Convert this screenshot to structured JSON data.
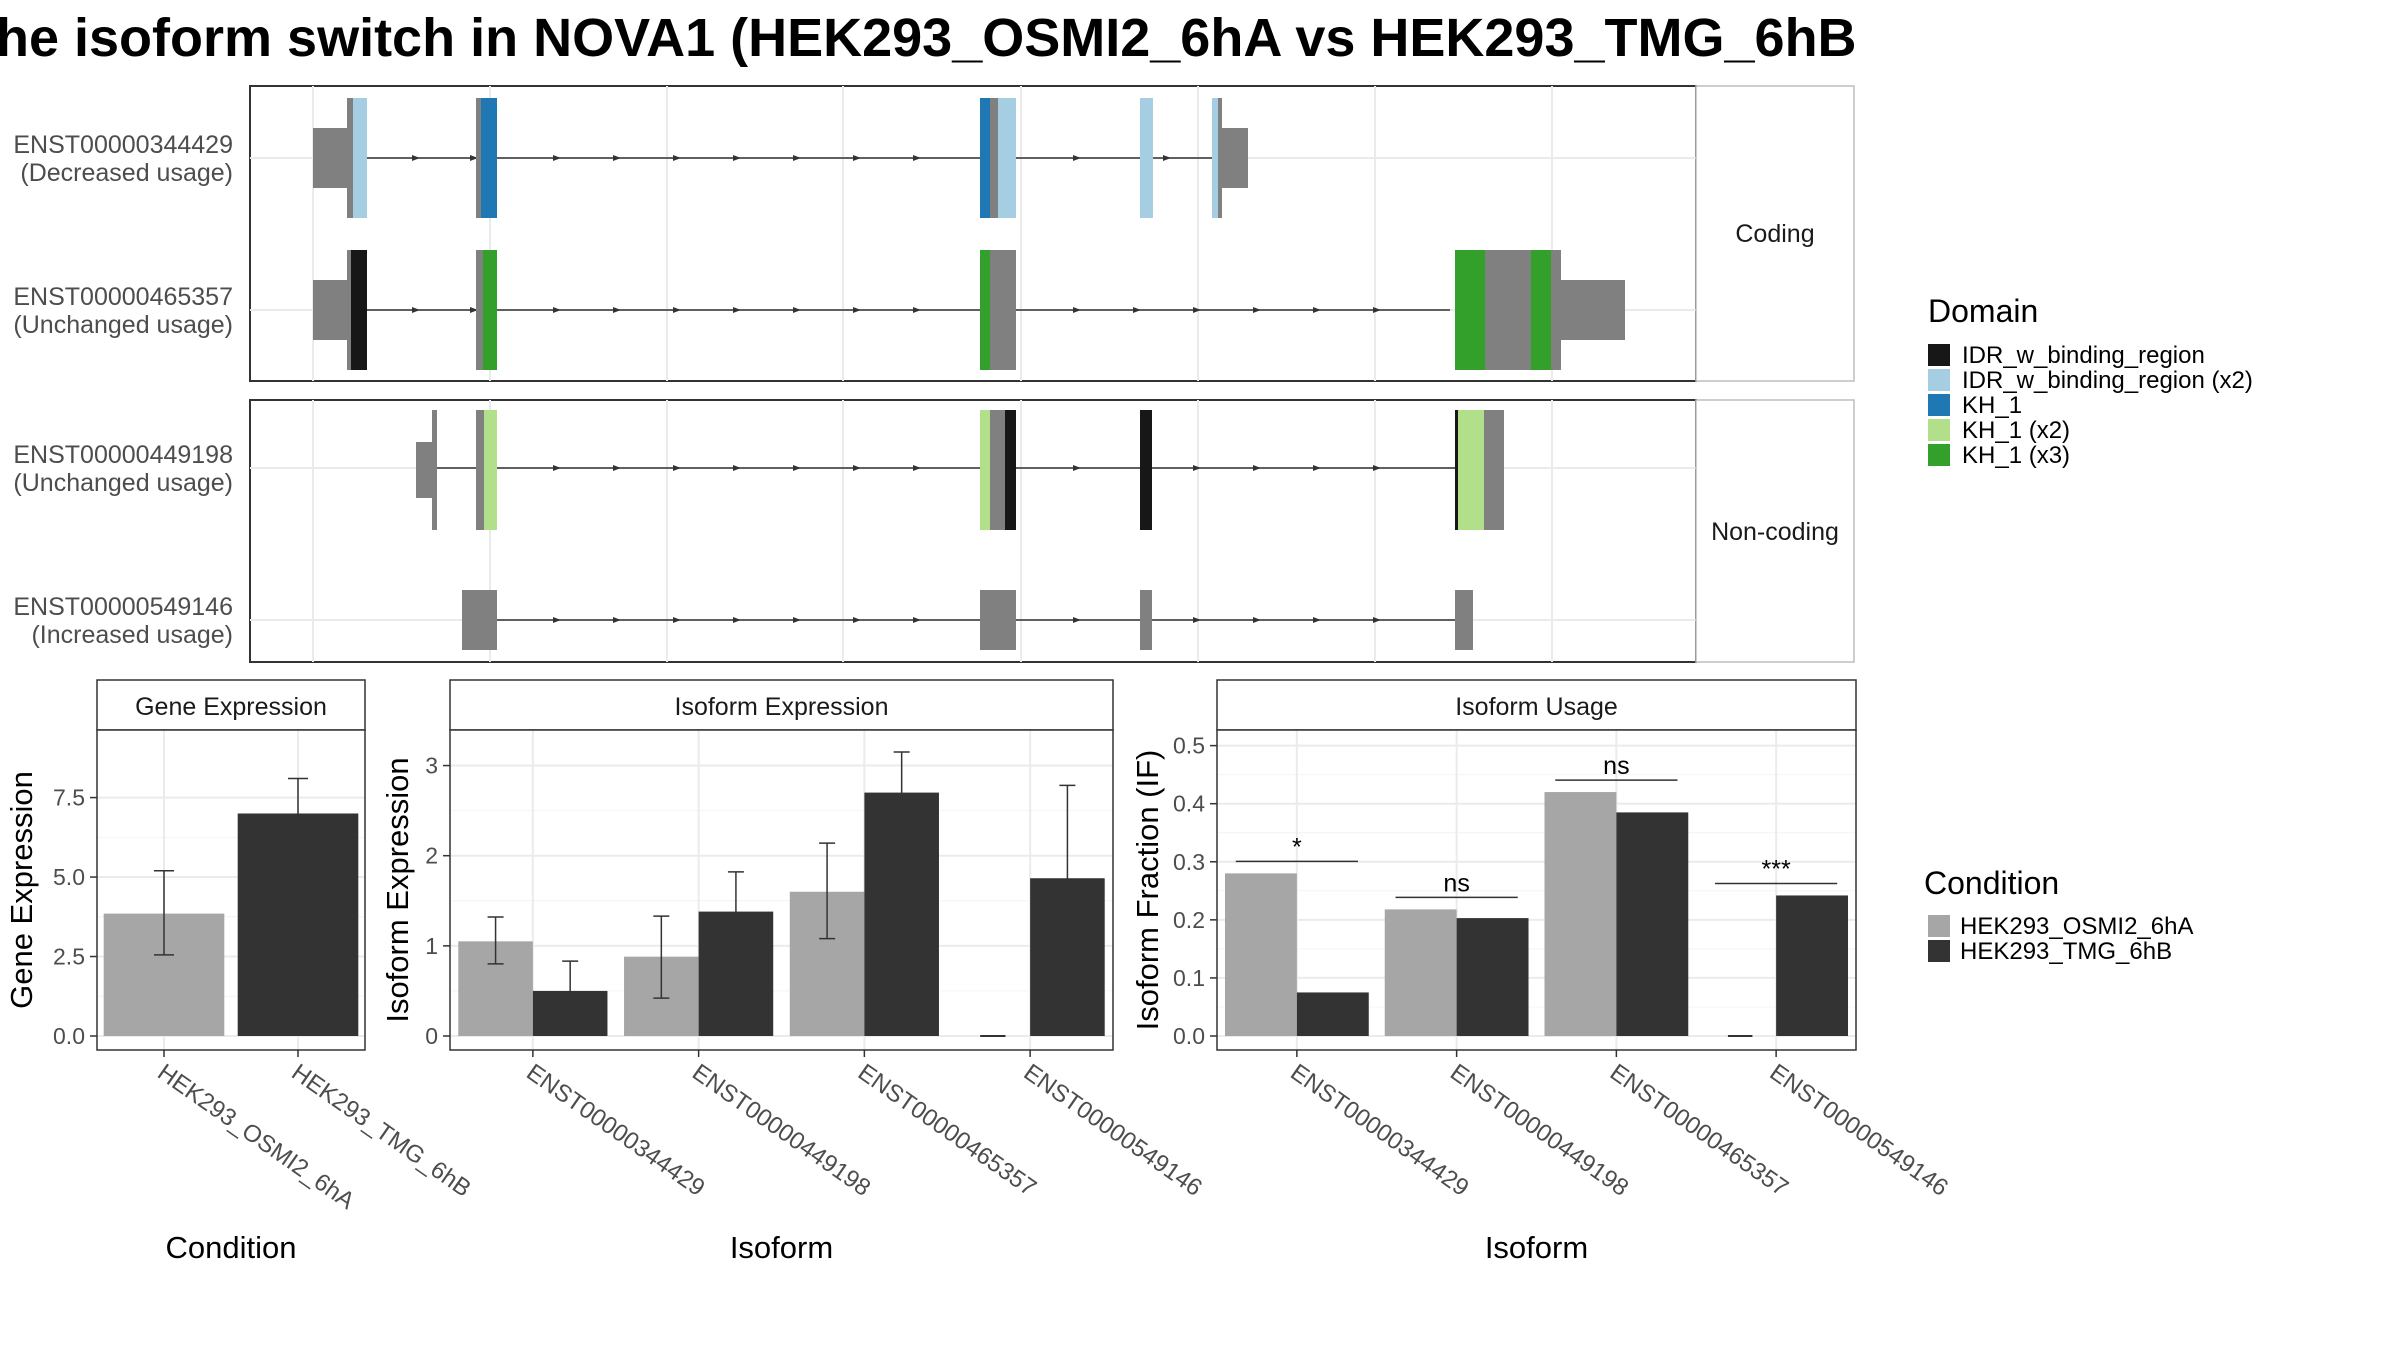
{
  "title": "he isoform switch in NOVA1 (HEK293_OSMI2_6hA vs HEK293_TMG_6hB",
  "colors": {
    "condition_a": "#a6a6a6",
    "condition_b": "#333333",
    "idr": "#171717",
    "idr_x2": "#a6cee3",
    "kh1": "#1f78b4",
    "kh1_x2": "#b2df8a",
    "kh1_x3": "#33a02c",
    "exon": "#808080"
  },
  "structure": {
    "panels": [
      {
        "label": "Coding",
        "isoforms": [
          {
            "id": "ENST00000344429",
            "usage": "(Decreased usage)"
          },
          {
            "id": "ENST00000465357",
            "usage": "(Unchanged usage)"
          }
        ]
      },
      {
        "label": "Non-coding",
        "isoforms": [
          {
            "id": "ENST00000449198",
            "usage": "(Unchanged usage)"
          },
          {
            "id": "ENST00000549146",
            "usage": "(Increased usage)"
          }
        ]
      }
    ]
  },
  "legends": {
    "domain": {
      "title": "Domain",
      "items": [
        {
          "label": "IDR_w_binding_region",
          "color": "#171717"
        },
        {
          "label": "IDR_w_binding_region (x2)",
          "color": "#a6cee3"
        },
        {
          "label": "KH_1",
          "color": "#1f78b4"
        },
        {
          "label": "KH_1 (x2)",
          "color": "#b2df8a"
        },
        {
          "label": "KH_1 (x3)",
          "color": "#33a02c"
        }
      ]
    },
    "condition": {
      "title": "Condition",
      "items": [
        {
          "label": "HEK293_OSMI2_6hA",
          "color": "#a6a6a6"
        },
        {
          "label": "HEK293_TMG_6hB",
          "color": "#333333"
        }
      ]
    }
  },
  "chart_data": [
    {
      "type": "bar",
      "title": "Gene Expression",
      "xlabel": "Condition",
      "ylabel": "Gene Expression",
      "ylim": [
        0,
        9.5
      ],
      "yticks": [
        0.0,
        2.5,
        5.0,
        7.5
      ],
      "ytick_labels": [
        "0.0",
        "2.5",
        "5.0",
        "7.5"
      ],
      "categories": [
        "HEK293_OSMI2_6hA",
        "HEK293_TMG_6hB"
      ],
      "values": [
        3.85,
        7.0
      ],
      "error": [
        [
          2.55,
          5.2
        ],
        [
          5.9,
          8.1
        ]
      ]
    },
    {
      "type": "bar",
      "title": "Isoform Expression",
      "xlabel": "Isoform",
      "ylabel": "Isoform Expression",
      "ylim": [
        0,
        3.35
      ],
      "yticks": [
        0,
        1,
        2,
        3
      ],
      "ytick_labels": [
        "0",
        "1",
        "2",
        "3"
      ],
      "categories": [
        "ENST00000344429",
        "ENST00000449198",
        "ENST00000465357",
        "ENST00000549146"
      ],
      "series": [
        {
          "name": "HEK293_OSMI2_6hA",
          "values": [
            1.05,
            0.88,
            1.6,
            0.0
          ],
          "error": [
            [
              0.8,
              1.32
            ],
            [
              0.42,
              1.33
            ],
            [
              1.08,
              2.14
            ],
            [
              0.0,
              0.0
            ]
          ]
        },
        {
          "name": "HEK293_TMG_6hB",
          "values": [
            0.5,
            1.38,
            2.7,
            1.75
          ],
          "error": [
            [
              0.19,
              0.83
            ],
            [
              0.97,
              1.82
            ],
            [
              2.27,
              3.15
            ],
            [
              0.72,
              2.78
            ]
          ]
        }
      ]
    },
    {
      "type": "bar",
      "title": "Isoform Usage",
      "xlabel": "Isoform",
      "ylabel": "Isoform Fraction (IF)",
      "ylim": [
        0,
        0.52
      ],
      "yticks": [
        0.0,
        0.1,
        0.2,
        0.3,
        0.4,
        0.5
      ],
      "ytick_labels": [
        "0.0",
        "0.1",
        "0.2",
        "0.3",
        "0.4",
        "0.5"
      ],
      "categories": [
        "ENST00000344429",
        "ENST00000449198",
        "ENST00000465357",
        "ENST00000549146"
      ],
      "series": [
        {
          "name": "HEK293_OSMI2_6hA",
          "values": [
            0.28,
            0.218,
            0.42,
            0.0
          ]
        },
        {
          "name": "HEK293_TMG_6hB",
          "values": [
            0.075,
            0.203,
            0.385,
            0.242
          ]
        }
      ],
      "significance": [
        "*",
        "ns",
        "ns",
        "***"
      ]
    }
  ]
}
